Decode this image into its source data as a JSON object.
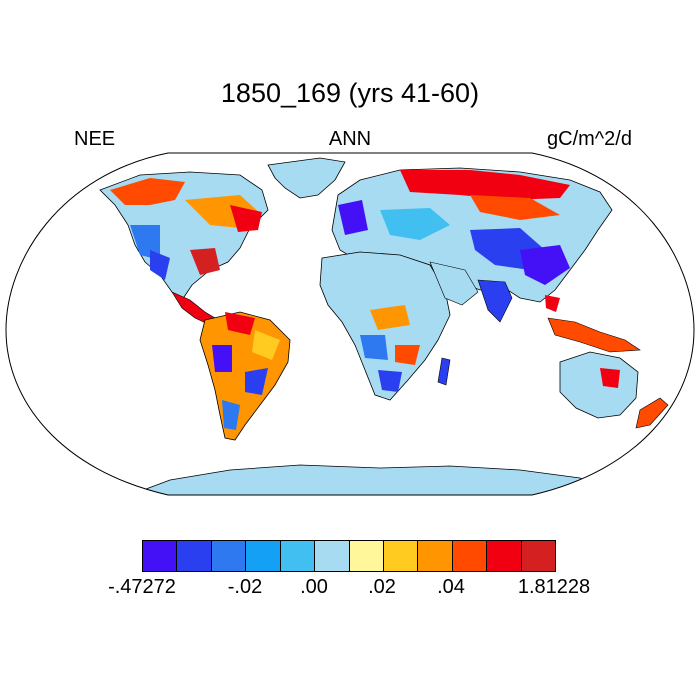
{
  "title": "1850_169 (yrs 41-60)",
  "left_label": "NEE",
  "center_label": "ANN",
  "right_label": "gC/m^2/d",
  "colorbar": {
    "colors": [
      "#4410f5",
      "#2a3ff0",
      "#2e78f0",
      "#13a0f5",
      "#40bff0",
      "#a6dbf2",
      "#fff799",
      "#ffcb20",
      "#ff9500",
      "#ff4a00",
      "#f00010",
      "#d42020"
    ],
    "tick_labels": [
      "-.47272",
      "-.02",
      ".00",
      ".02",
      ".04",
      "1.81228"
    ]
  },
  "colors": {
    "ocean": "#ffffff",
    "border": "#000000"
  }
}
